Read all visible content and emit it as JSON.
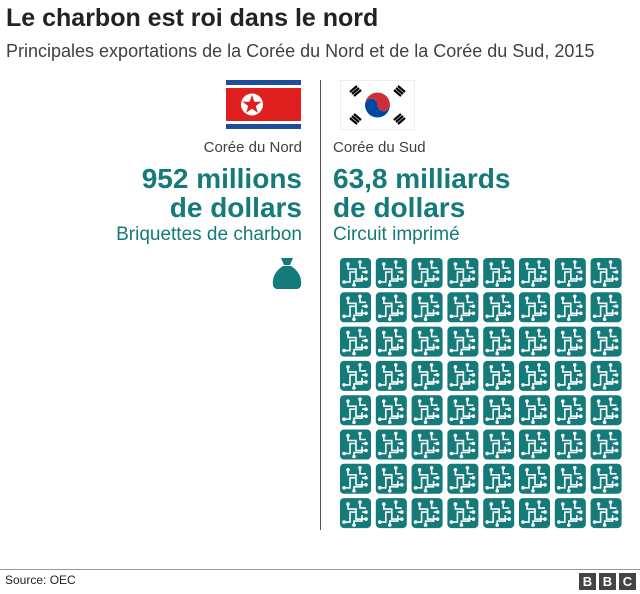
{
  "header": {
    "title": "Le charbon est roi dans le nord",
    "subtitle": "Principales exportations de la Corée du Nord et de la Corée du Sud, 2015"
  },
  "left": {
    "country": "Corée du Nord",
    "amount_line1": "952 millions",
    "amount_line2": "de dollars",
    "product": "Briquettes de charbon"
  },
  "right": {
    "country": "Corée du Sud",
    "amount_line1": "63,8 milliards",
    "amount_line2": "de dollars",
    "product": "Circuit imprimé"
  },
  "footer": {
    "source": "Source: OEC",
    "logo": [
      "B",
      "B",
      "C"
    ]
  }
}
